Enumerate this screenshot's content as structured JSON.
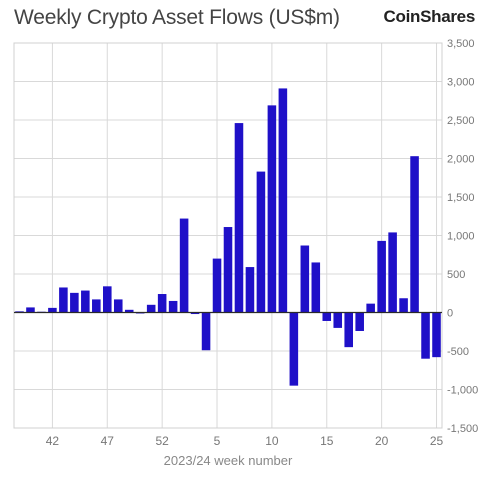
{
  "brand": {
    "name": "CoinShares"
  },
  "chart_data": {
    "type": "bar",
    "title": "Weekly Crypto Asset Flows (US$m)",
    "xlabel": "2023/24 week number",
    "ylabel": "",
    "ylim": [
      -1500,
      3500
    ],
    "yticks": [
      3500,
      3000,
      2500,
      2000,
      1500,
      1000,
      500,
      0,
      -500,
      -1000,
      -1500
    ],
    "ytick_labels": [
      "3,500",
      "3,000",
      "2,500",
      "2,000",
      "1,500",
      "1,000",
      "500",
      "0",
      "-500",
      "-1,000",
      "-1,500"
    ],
    "xtick_labels": [
      {
        "label": "42",
        "index": 3
      },
      {
        "label": "47",
        "index": 8
      },
      {
        "label": "52",
        "index": 13
      },
      {
        "label": "5",
        "index": 18
      },
      {
        "label": "10",
        "index": 23
      },
      {
        "label": "15",
        "index": 28
      },
      {
        "label": "20",
        "index": 33
      },
      {
        "label": "25",
        "index": 38
      }
    ],
    "bar_color": "#1f10c8",
    "grid": true,
    "values": [
      15,
      66,
      10,
      60,
      325,
      255,
      285,
      170,
      340,
      170,
      35,
      -10,
      100,
      240,
      150,
      1220,
      -20,
      -490,
      700,
      1110,
      2460,
      590,
      1830,
      2690,
      2910,
      -950,
      870,
      650,
      -110,
      -200,
      -450,
      -240,
      115,
      930,
      1040,
      185,
      2030,
      -600,
      -580
    ]
  }
}
